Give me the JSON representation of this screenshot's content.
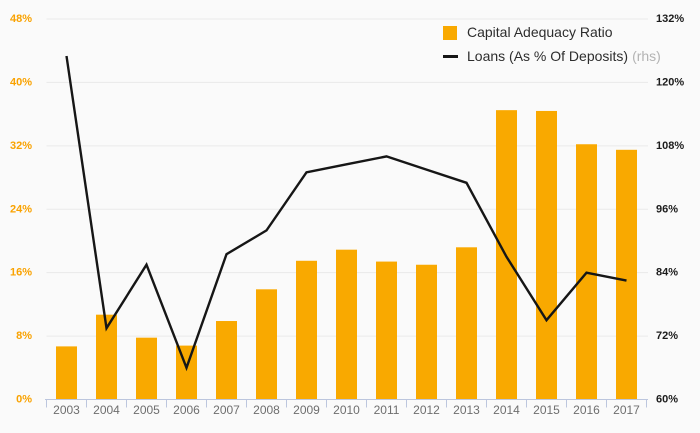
{
  "chart_data": {
    "type": "bar+line",
    "title": "",
    "categories": [
      "2003",
      "2004",
      "2005",
      "2006",
      "2007",
      "2008",
      "2009",
      "2010",
      "2011",
      "2012",
      "2013",
      "2014",
      "2015",
      "2016",
      "2017"
    ],
    "series": [
      {
        "name": "Capital Adequacy Ratio",
        "type": "bar",
        "axis": "left",
        "values": [
          6.7,
          10.7,
          7.8,
          6.8,
          9.9,
          13.9,
          17.5,
          18.9,
          17.4,
          17.0,
          19.2,
          36.5,
          36.4,
          32.2,
          31.5
        ]
      },
      {
        "name": "Loans (As % Of Deposits)",
        "legend_suffix": "(rhs)",
        "type": "line",
        "axis": "right",
        "values": [
          125,
          73.5,
          85.5,
          66,
          87.5,
          92,
          103,
          104.5,
          106,
          103.5,
          101,
          87,
          75,
          84,
          82.5
        ]
      }
    ],
    "left_axis": {
      "min": 0,
      "max": 48,
      "step": 8,
      "labels": [
        "0%",
        "8%",
        "16%",
        "24%",
        "32%",
        "40%",
        "48%"
      ]
    },
    "right_axis": {
      "min": 60,
      "max": 132,
      "step": 12,
      "labels": [
        "60%",
        "72%",
        "84%",
        "96%",
        "108%",
        "120%",
        "132%"
      ]
    },
    "legend_position": "top-right",
    "grid": true
  },
  "colors": {
    "bar": "#F9A900",
    "line": "#161616",
    "left_axis_text": "#F9A200",
    "right_axis_text": "#1c1c1c",
    "x_axis_text": "#6e6e6e",
    "gridline": "#e9e9e9",
    "axis_line": "#bcc6de",
    "background": "#fafafa",
    "legend_text": "#2d2d2d",
    "legend_suffix_text": "#b3b3b3"
  }
}
